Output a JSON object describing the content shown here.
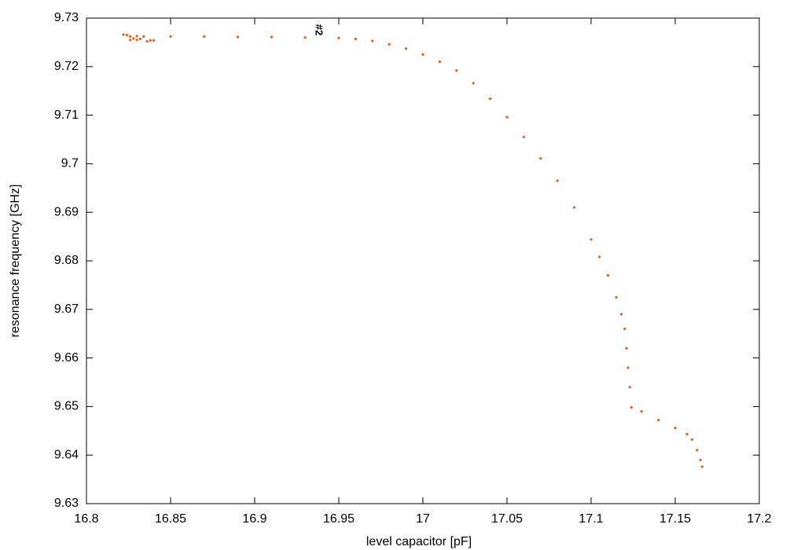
{
  "chart_data": {
    "type": "scatter",
    "x_label": "level capacitor [pF]",
    "y_label": "resonance frequency [GHz]",
    "annotation": "#2",
    "color": "#f25a14",
    "x": [
      16.822,
      16.824,
      16.826,
      16.828,
      16.83,
      16.832,
      16.834,
      16.836,
      16.838,
      16.84,
      16.826,
      16.83,
      16.85,
      16.87,
      16.89,
      16.91,
      16.93,
      16.95,
      16.96,
      16.97,
      16.98,
      16.99,
      17.0,
      17.01,
      17.02,
      17.03,
      17.04,
      17.05,
      17.06,
      17.07,
      17.08,
      17.09,
      17.1,
      17.105,
      17.11,
      17.115,
      17.118,
      17.12,
      17.121,
      17.122,
      17.123,
      17.124,
      17.13,
      17.14,
      17.15,
      17.157,
      17.16,
      17.163,
      17.165,
      17.166
    ],
    "y": [
      9.7266,
      9.7265,
      9.7262,
      9.7258,
      9.7255,
      9.7257,
      9.7262,
      9.7252,
      9.7254,
      9.7254,
      9.7255,
      9.7263,
      9.7262,
      9.7262,
      9.7261,
      9.7261,
      9.726,
      9.7259,
      9.7257,
      9.7253,
      9.7246,
      9.7237,
      9.7225,
      9.721,
      9.7192,
      9.7166,
      9.7134,
      9.7096,
      9.7055,
      9.7011,
      9.6965,
      9.691,
      9.6844,
      9.6808,
      9.677,
      9.6725,
      9.669,
      9.666,
      9.662,
      9.658,
      9.654,
      9.6498,
      9.649,
      9.6472,
      9.6456,
      9.6443,
      9.6432,
      9.641,
      9.639,
      9.6376
    ],
    "xlim": [
      16.8,
      17.2
    ],
    "ylim": [
      9.63,
      9.73
    ],
    "xticks": [
      16.8,
      16.85,
      16.9,
      16.95,
      17,
      17.05,
      17.1,
      17.15,
      17.2
    ],
    "yticks": [
      9.63,
      9.64,
      9.65,
      9.66,
      9.67,
      9.68,
      9.69,
      9.7,
      9.71,
      9.72,
      9.73
    ],
    "grid": false
  }
}
